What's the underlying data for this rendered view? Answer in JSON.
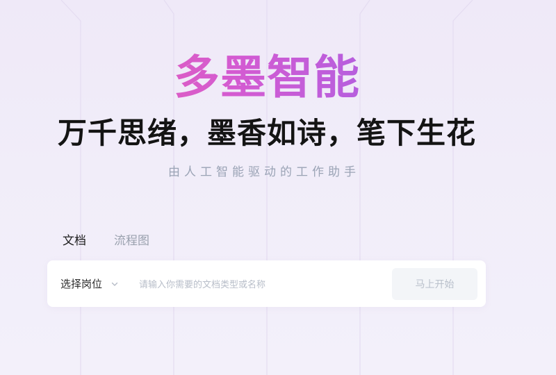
{
  "hero": {
    "brand_title": "多墨智能",
    "slogan": "万千思绪，墨香如诗，笔下生花",
    "subtitle": "由人工智能驱动的工作助手"
  },
  "tabs": [
    {
      "label": "文档",
      "active": true
    },
    {
      "label": "流程图",
      "active": false
    }
  ],
  "search": {
    "position_select_label": "选择岗位",
    "input_value": "",
    "input_placeholder": "请输入你需要的文档类型或名称",
    "start_button_label": "马上开始"
  },
  "colors": {
    "brand_gradient_start": "#ef5fa6",
    "brand_gradient_end": "#8d63ee",
    "background": "#efe9f8",
    "subtitle_text": "#9aa3b5",
    "button_bg": "#f3f5f8"
  },
  "icons": {
    "position_select": "chevron-down-icon"
  }
}
